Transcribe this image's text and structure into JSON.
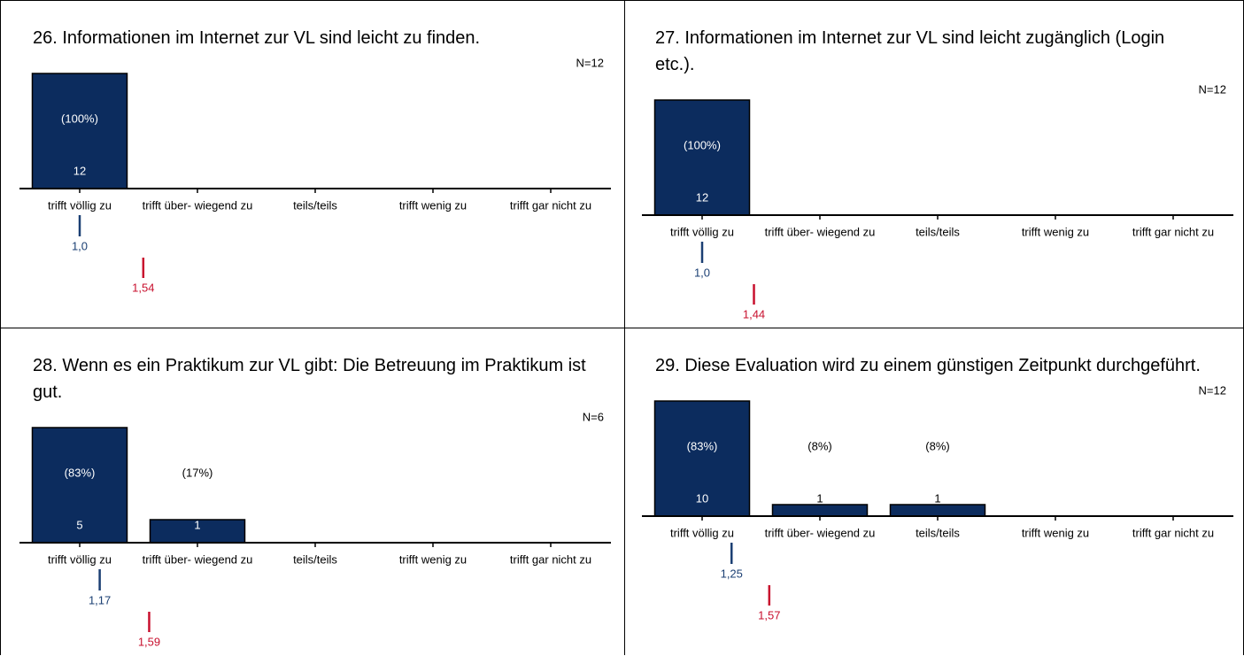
{
  "chart_data": [
    {
      "type": "bar",
      "title": "26. Informationen im Internet zur VL sind leicht zu finden.",
      "n_label": "N=12",
      "categories": [
        "trifft völlig zu",
        "trifft über- wiegend zu",
        "teils/teils",
        "trifft wenig zu",
        "trifft gar nicht zu"
      ],
      "values": [
        12,
        0,
        0,
        0,
        0
      ],
      "percent_labels": [
        "(100%)",
        null,
        null,
        null,
        null
      ],
      "ylim": [
        0,
        12
      ],
      "color": "#0c2c5e",
      "mean": 1.0,
      "mean_label": "1,0",
      "mean_color": "#1b3f73",
      "comparison_mean": 1.54,
      "comparison_label": "1,54",
      "comparison_color": "#c8102e"
    },
    {
      "type": "bar",
      "title": "27. Informationen im Internet zur VL sind leicht zugänglich (Login etc.).",
      "n_label": "N=12",
      "categories": [
        "trifft völlig zu",
        "trifft über- wiegend zu",
        "teils/teils",
        "trifft wenig zu",
        "trifft gar nicht zu"
      ],
      "values": [
        12,
        0,
        0,
        0,
        0
      ],
      "percent_labels": [
        "(100%)",
        null,
        null,
        null,
        null
      ],
      "ylim": [
        0,
        12
      ],
      "color": "#0c2c5e",
      "mean": 1.0,
      "mean_label": "1,0",
      "mean_color": "#1b3f73",
      "comparison_mean": 1.44,
      "comparison_label": "1,44",
      "comparison_color": "#c8102e"
    },
    {
      "type": "bar",
      "title": "28. Wenn es ein Praktikum zur VL gibt: Die Betreuung im Praktikum ist gut.",
      "n_label": "N=6",
      "categories": [
        "trifft völlig zu",
        "trifft über- wiegend zu",
        "teils/teils",
        "trifft wenig zu",
        "trifft gar nicht zu"
      ],
      "values": [
        5,
        1,
        0,
        0,
        0
      ],
      "percent_labels": [
        "(83%)",
        "(17%)",
        null,
        null,
        null
      ],
      "ylim": [
        0,
        5
      ],
      "color": "#0c2c5e",
      "mean": 1.17,
      "mean_label": "1,17",
      "mean_color": "#1b3f73",
      "comparison_mean": 1.59,
      "comparison_label": "1,59",
      "comparison_color": "#c8102e"
    },
    {
      "type": "bar",
      "title": "29. Diese Evaluation wird zu einem günstigen Zeitpunkt durchgeführt.",
      "n_label": "N=12",
      "categories": [
        "trifft völlig zu",
        "trifft über- wiegend zu",
        "teils/teils",
        "trifft wenig zu",
        "trifft gar nicht zu"
      ],
      "values": [
        10,
        1,
        1,
        0,
        0
      ],
      "percent_labels": [
        "(83%)",
        "(8%)",
        "(8%)",
        null,
        null
      ],
      "ylim": [
        0,
        10
      ],
      "color": "#0c2c5e",
      "mean": 1.25,
      "mean_label": "1,25",
      "mean_color": "#1b3f73",
      "comparison_mean": 1.57,
      "comparison_label": "1,57",
      "comparison_color": "#c8102e"
    }
  ]
}
